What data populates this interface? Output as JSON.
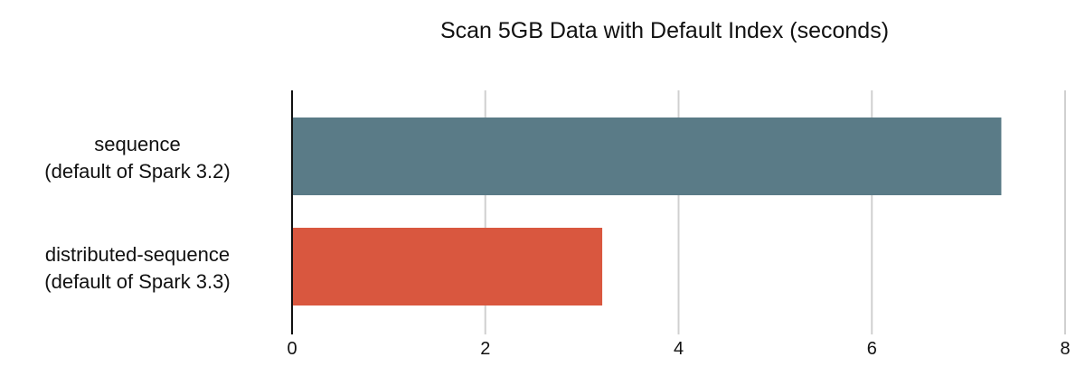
{
  "chart_data": {
    "type": "bar",
    "orientation": "horizontal",
    "title": "Scan 5GB Data with Default Index (seconds)",
    "xlabel": "",
    "ylabel": "",
    "categories": [
      [
        "sequence",
        "(default of Spark 3.2)"
      ],
      [
        "distributed-sequence",
        "(default of Spark 3.3)"
      ]
    ],
    "values": [
      7.34,
      3.21
    ],
    "colors": [
      "#5a7b87",
      "#d9573f"
    ],
    "xlim": [
      0,
      8
    ],
    "xticks": [
      0,
      2,
      4,
      6,
      8
    ],
    "grid": "vertical",
    "legend": "none"
  }
}
